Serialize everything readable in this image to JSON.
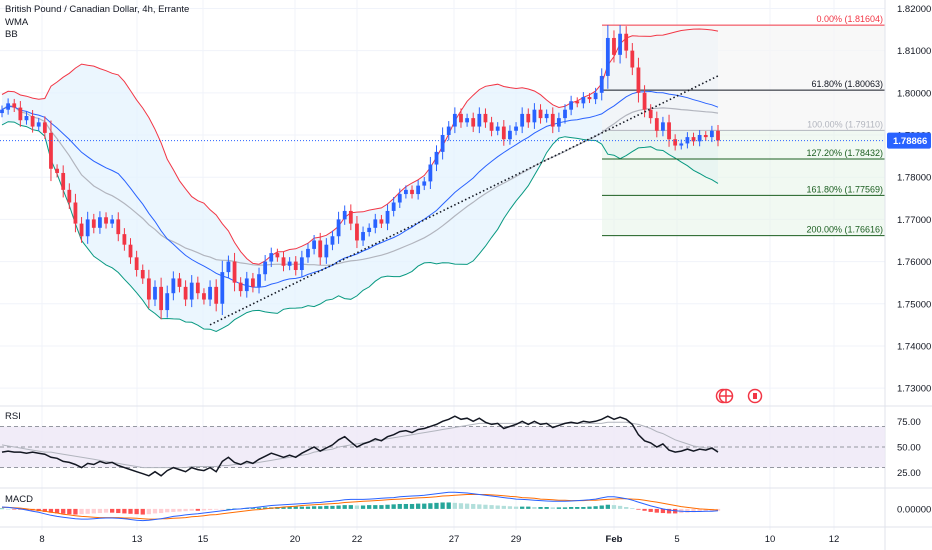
{
  "header": {
    "symbol_line": "British Pound / Canadian Dollar, 4h, Errante",
    "indicator_1": "WMA",
    "indicator_2": "BB"
  },
  "colors": {
    "up": "#2962ff",
    "down": "#f23645",
    "wma": "#b2b5be",
    "bb_basis": "#2962ff",
    "bb_upper": "#f23645",
    "bb_lower": "#089981",
    "bb_fill": "#e3f2fd",
    "rsi_line": "#131722",
    "rsi_ma": "#b2b5be",
    "rsi_band": "#ede7f6",
    "price_label_bg": "#2962ff",
    "macd_line": "#2962ff",
    "signal_line": "#ff6d00",
    "grid": "#f0f3fa"
  },
  "chart_data": {
    "type": "candlestick",
    "symbol": "GBPCAD",
    "timeframe": "4h",
    "y_axis": {
      "ticks": [
        "1.82000",
        "1.81000",
        "1.80000",
        "1.79000",
        "1.78000",
        "1.77000",
        "1.76000",
        "1.75000",
        "1.74000",
        "1.73000"
      ],
      "range": [
        1.726,
        1.822
      ]
    },
    "x_axis": {
      "labels": [
        "8",
        "13",
        "15",
        "20",
        "22",
        "27",
        "29",
        "Feb",
        "5",
        "10",
        "12"
      ]
    },
    "last_price": "1.78866",
    "closes": [
      1.796,
      1.7975,
      1.7965,
      1.7935,
      1.7945,
      1.792,
      1.793,
      1.7905,
      1.782,
      1.781,
      1.777,
      1.774,
      1.769,
      1.766,
      1.77,
      1.768,
      1.7705,
      1.769,
      1.77,
      1.7665,
      1.764,
      1.761,
      1.758,
      1.756,
      1.751,
      1.754,
      1.7485,
      1.7525,
      1.756,
      1.754,
      1.751,
      1.755,
      1.7525,
      1.751,
      1.754,
      1.75,
      1.7575,
      1.76,
      1.755,
      1.753,
      1.756,
      1.754,
      1.757,
      1.76,
      1.762,
      1.761,
      1.759,
      1.76,
      1.758,
      1.761,
      1.763,
      1.765,
      1.761,
      1.764,
      1.766,
      1.77,
      1.772,
      1.769,
      1.765,
      1.767,
      1.768,
      1.77,
      1.769,
      1.772,
      1.774,
      1.776,
      1.777,
      1.776,
      1.778,
      1.779,
      1.783,
      1.786,
      1.79,
      1.792,
      1.795,
      1.793,
      1.794,
      1.792,
      1.795,
      1.793,
      1.791,
      1.792,
      1.789,
      1.791,
      1.792,
      1.795,
      1.793,
      1.796,
      1.794,
      1.795,
      1.792,
      1.794,
      1.796,
      1.798,
      1.7975,
      1.799,
      1.7985,
      1.8,
      1.804,
      1.813,
      1.809,
      1.814,
      1.81,
      1.806,
      1.8,
      1.796,
      1.794,
      1.791,
      1.793,
      1.789,
      1.7875,
      1.788,
      1.7895,
      1.7885,
      1.79,
      1.7895,
      1.791,
      1.7887
    ],
    "fibonacci": [
      {
        "label": "0.00% (1.81604)",
        "value": 1.81604,
        "color": "#f23645"
      },
      {
        "label": "61.80% (1.80063)",
        "value": 1.80063,
        "color": "#131722"
      },
      {
        "label": "100.00% (1.79110)",
        "value": 1.7911,
        "color": "#b2b5be"
      },
      {
        "label": "127.20% (1.78432)",
        "value": 1.78432,
        "color": "#1b5e20"
      },
      {
        "label": "161.80% (1.77569)",
        "value": 1.77569,
        "color": "#1b5e20"
      },
      {
        "label": "200.00% (1.76616)",
        "value": 1.76616,
        "color": "#1b5e20"
      }
    ],
    "trendline": {
      "from_price": 1.745,
      "to_price": 1.804
    },
    "rsi": {
      "label": "RSI",
      "ticks": [
        "75.00",
        "50.00",
        "25.00"
      ],
      "range": [
        14,
        86
      ],
      "values": [
        45,
        46,
        45,
        45,
        44,
        45,
        44,
        43,
        40,
        39,
        36,
        35,
        33,
        30,
        34,
        33,
        36,
        34,
        35,
        32,
        30,
        28,
        26,
        24,
        22,
        26,
        22,
        27,
        30,
        28,
        26,
        30,
        28,
        27,
        30,
        26,
        36,
        40,
        35,
        33,
        36,
        34,
        38,
        41,
        44,
        42,
        40,
        42,
        40,
        44,
        47,
        50,
        46,
        49,
        52,
        57,
        60,
        55,
        50,
        53,
        55,
        58,
        56,
        60,
        62,
        65,
        66,
        64,
        67,
        68,
        70,
        72,
        75,
        77,
        80,
        77,
        78,
        75,
        78,
        74,
        72,
        73,
        68,
        70,
        72,
        75,
        72,
        75,
        72,
        73,
        69,
        71,
        73,
        74,
        73,
        75,
        74,
        75,
        77,
        80,
        77,
        79,
        77,
        72,
        62,
        56,
        54,
        50,
        53,
        47,
        45,
        46,
        48,
        46,
        48,
        47,
        49,
        45
      ],
      "ma_values": [
        52,
        51,
        50,
        49,
        48,
        47,
        46,
        45,
        45,
        44,
        43,
        42,
        41,
        40,
        39,
        38,
        37,
        36,
        35,
        34,
        33,
        32,
        31,
        30,
        30,
        30,
        30,
        30,
        30,
        30,
        30,
        31,
        31,
        31,
        31,
        31,
        32,
        32,
        33,
        33,
        34,
        34,
        35,
        36,
        37,
        38,
        39,
        40,
        41,
        42,
        43,
        45,
        46,
        47,
        48,
        50,
        51,
        52,
        53,
        54,
        55,
        56,
        57,
        58,
        59,
        60,
        61,
        62,
        63,
        64,
        65,
        66,
        67,
        68,
        69,
        70,
        71,
        72,
        73,
        73,
        73,
        73,
        73,
        73,
        73,
        73,
        73,
        73,
        73,
        73,
        73,
        73,
        73,
        73,
        73,
        73,
        73,
        73,
        73,
        74,
        74,
        74,
        74,
        73,
        72,
        70,
        68,
        65,
        63,
        60,
        57,
        55,
        53,
        51,
        50,
        49,
        48,
        47
      ]
    },
    "macd": {
      "label": "MACD",
      "ticks": [
        "0.00000"
      ],
      "hist": [
        0.1,
        0.0,
        -0.1,
        -0.2,
        -0.3,
        -0.4,
        -0.6,
        -0.8,
        -1.0,
        -1.2,
        -1.3,
        -1.4,
        -1.5,
        -1.4,
        -1.3,
        -1.2,
        -1.1,
        -1.0,
        -1.0,
        -1.1,
        -1.2,
        -1.3,
        -1.4,
        -1.5,
        -1.4,
        -1.2,
        -1.1,
        -0.9,
        -0.8,
        -0.7,
        -0.6,
        -0.5,
        -0.5,
        -0.4,
        -0.3,
        -0.2,
        -0.1,
        0.0,
        0.1,
        0.1,
        0.2,
        0.2,
        0.3,
        0.4,
        0.4,
        0.5,
        0.5,
        0.5,
        0.6,
        0.6,
        0.6,
        0.7,
        0.7,
        0.8,
        0.8,
        0.9,
        1.0,
        1.0,
        0.9,
        0.9,
        1.0,
        1.0,
        1.0,
        1.1,
        1.2,
        1.3,
        1.3,
        1.3,
        1.4,
        1.4,
        1.5,
        1.6,
        1.7,
        1.7,
        1.6,
        1.5,
        1.4,
        1.3,
        1.2,
        1.1,
        1.0,
        0.9,
        0.8,
        0.7,
        0.6,
        0.6,
        0.6,
        0.5,
        0.5,
        0.5,
        0.4,
        0.4,
        0.4,
        0.5,
        0.5,
        0.5,
        0.6,
        0.7,
        0.9,
        1.1,
        1.0,
        0.8,
        0.5,
        0.2,
        -0.2,
        -0.5,
        -0.8,
        -1.0,
        -1.1,
        -1.2,
        -1.2,
        -1.1,
        -1.0,
        -0.9,
        -0.8,
        -0.7,
        -0.6,
        -0.5
      ],
      "macd_values": [
        0.5,
        0.4,
        0.2,
        0.0,
        -0.3,
        -0.6,
        -0.9,
        -1.3,
        -1.7,
        -2.0,
        -2.2,
        -2.4,
        -2.6,
        -2.7,
        -2.7,
        -2.6,
        -2.5,
        -2.4,
        -2.4,
        -2.5,
        -2.6,
        -2.8,
        -3.0,
        -3.1,
        -3.0,
        -2.8,
        -2.6,
        -2.3,
        -2.0,
        -1.8,
        -1.6,
        -1.4,
        -1.3,
        -1.1,
        -0.9,
        -0.7,
        -0.5,
        -0.3,
        -0.1,
        0.0,
        0.2,
        0.3,
        0.5,
        0.7,
        0.9,
        1.0,
        1.1,
        1.2,
        1.3,
        1.4,
        1.5,
        1.6,
        1.7,
        1.9,
        2.0,
        2.2,
        2.4,
        2.5,
        2.5,
        2.5,
        2.6,
        2.7,
        2.8,
        2.9,
        3.0,
        3.2,
        3.3,
        3.4,
        3.5,
        3.6,
        3.8,
        4.0,
        4.2,
        4.4,
        4.4,
        4.3,
        4.2,
        4.0,
        3.8,
        3.6,
        3.4,
        3.2,
        3.0,
        2.8,
        2.6,
        2.5,
        2.4,
        2.3,
        2.2,
        2.1,
        2.0,
        2.0,
        2.0,
        2.1,
        2.2,
        2.3,
        2.4,
        2.6,
        2.9,
        3.2,
        3.2,
        3.0,
        2.7,
        2.3,
        1.8,
        1.3,
        0.8,
        0.4,
        0.0,
        -0.3,
        -0.5,
        -0.6,
        -0.7,
        -0.7,
        -0.7,
        -0.6,
        -0.6,
        -0.5
      ],
      "signal_values": [
        0.4,
        0.4,
        0.3,
        0.2,
        0.0,
        -0.2,
        -0.4,
        -0.6,
        -0.9,
        -1.1,
        -1.4,
        -1.6,
        -1.8,
        -2.0,
        -2.1,
        -2.2,
        -2.3,
        -2.3,
        -2.3,
        -2.3,
        -2.4,
        -2.4,
        -2.5,
        -2.6,
        -2.7,
        -2.7,
        -2.6,
        -2.6,
        -2.5,
        -2.4,
        -2.3,
        -2.1,
        -2.0,
        -1.8,
        -1.6,
        -1.5,
        -1.3,
        -1.1,
        -0.9,
        -0.7,
        -0.5,
        -0.3,
        -0.2,
        0.0,
        0.2,
        0.3,
        0.5,
        0.6,
        0.7,
        0.9,
        1.0,
        1.1,
        1.2,
        1.3,
        1.4,
        1.5,
        1.7,
        1.8,
        1.9,
        2.0,
        2.1,
        2.2,
        2.3,
        2.4,
        2.5,
        2.6,
        2.7,
        2.8,
        2.9,
        3.0,
        3.1,
        3.2,
        3.4,
        3.5,
        3.6,
        3.7,
        3.8,
        3.8,
        3.8,
        3.8,
        3.7,
        3.6,
        3.5,
        3.3,
        3.2,
        3.0,
        2.9,
        2.8,
        2.6,
        2.5,
        2.4,
        2.3,
        2.3,
        2.2,
        2.2,
        2.2,
        2.3,
        2.3,
        2.4,
        2.5,
        2.6,
        2.7,
        2.7,
        2.6,
        2.5,
        2.3,
        2.0,
        1.8,
        1.5,
        1.2,
        0.9,
        0.6,
        0.4,
        0.2,
        0.0,
        -0.1,
        -0.2,
        -0.3
      ]
    }
  }
}
